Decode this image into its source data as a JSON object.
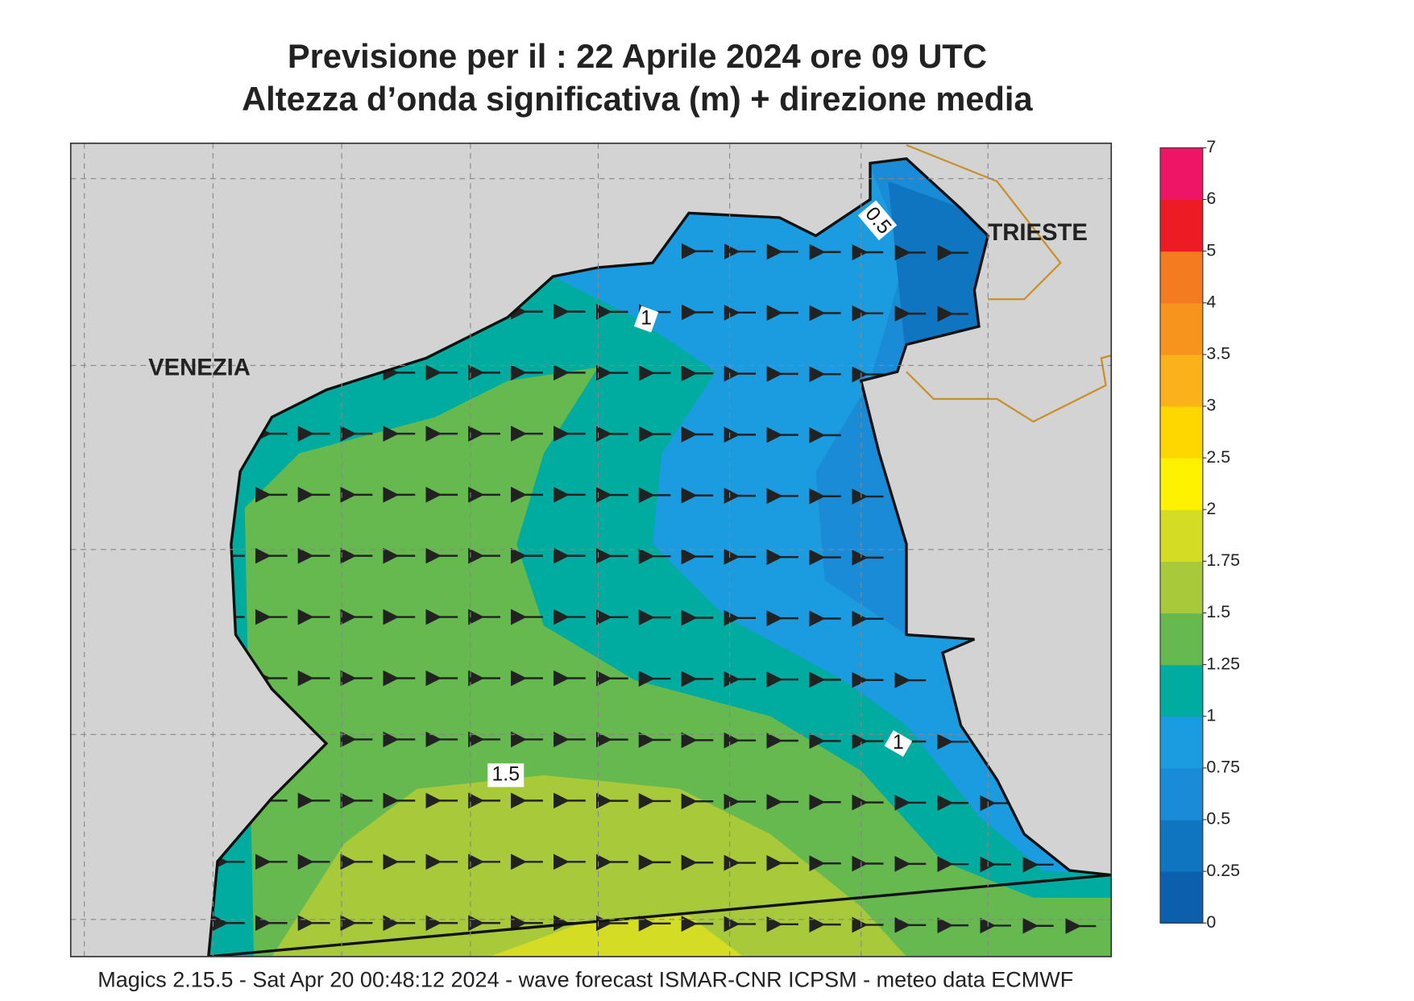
{
  "header": {
    "title": "Previsione per il  :  22   Aprile  2024   ore 09 UTC",
    "subtitle": "Altezza d’onda significativa (m) + direzione media"
  },
  "places": [
    "VENEZIA",
    "TRIESTE"
  ],
  "contour_labels": [
    0.5,
    1,
    1,
    1.5
  ],
  "colorbar": {
    "ticks": [
      0,
      0.25,
      0.5,
      0.75,
      1,
      1.25,
      1.5,
      1.75,
      2,
      2.5,
      3,
      3.5,
      4,
      5,
      6,
      7
    ],
    "colors": [
      "#0b5fad",
      "#1075c0",
      "#1a8bd6",
      "#1b9be0",
      "#00ab9f",
      "#66b94f",
      "#a8c93a",
      "#d4dc24",
      "#fff200",
      "#ffd700",
      "#fbb21a",
      "#f7941d",
      "#f47b20",
      "#ed1c24",
      "#ee1466"
    ]
  },
  "footer": "Magics 2.15.5 - Sat Apr 20 00:48:12 2024 - wave forecast  ISMAR-CNR  ICPSM - meteo data   ECMWF"
}
